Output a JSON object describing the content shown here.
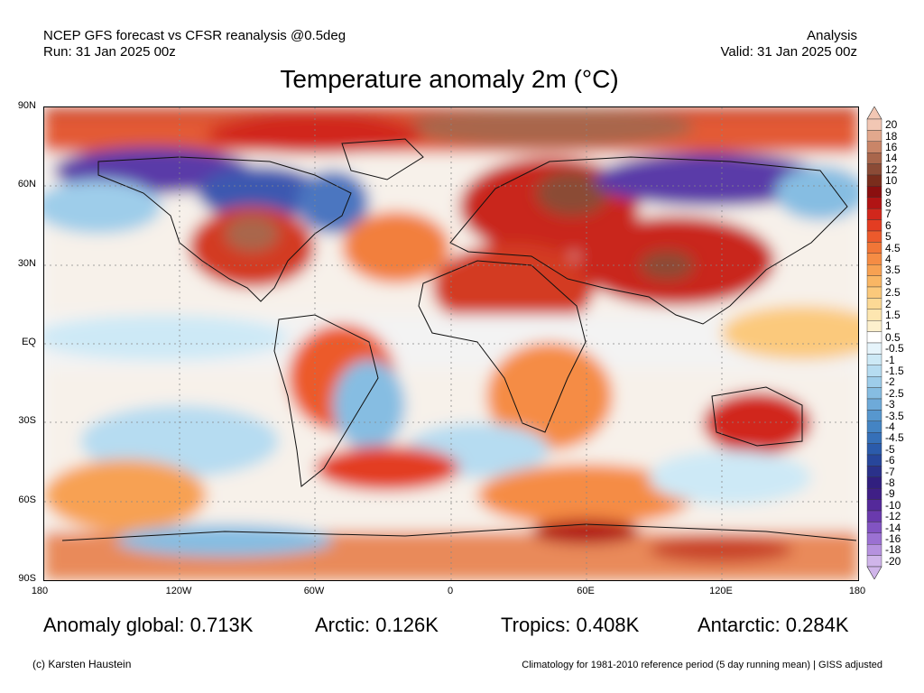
{
  "header": {
    "line1": "NCEP GFS forecast vs CFSR reanalysis @0.5deg",
    "line2": "Run: 31 Jan 2025 00z",
    "right1": "Analysis",
    "right2": "Valid: 31 Jan 2025 00z"
  },
  "title": "Temperature anomaly 2m (°C)",
  "lat_labels": [
    "90N",
    "60N",
    "30N",
    "EQ",
    "30S",
    "60S",
    "90S"
  ],
  "lon_labels": [
    "180",
    "120W",
    "60W",
    "0",
    "60E",
    "120E",
    "180"
  ],
  "colorbar": {
    "labels": [
      "20",
      "18",
      "16",
      "14",
      "12",
      "10",
      "9",
      "8",
      "7",
      "6",
      "5",
      "4.5",
      "4",
      "3.5",
      "3",
      "2.5",
      "2",
      "1.5",
      "1",
      "0.5",
      "-0.5",
      "-1",
      "-1.5",
      "-2",
      "-2.5",
      "-3",
      "-3.5",
      "-4",
      "-4.5",
      "-5",
      "-6",
      "-7",
      "-8",
      "-9",
      "-10",
      "-12",
      "-14",
      "-16",
      "-18",
      "-20"
    ],
    "colors": [
      "#f2c7b4",
      "#e2a88d",
      "#c98568",
      "#a9664c",
      "#8b4b36",
      "#7a2d1c",
      "#8b0f0f",
      "#b11414",
      "#d1271c",
      "#e33d22",
      "#ec5a2c",
      "#f17637",
      "#f58c44",
      "#f7a152",
      "#f9b664",
      "#fbc97b",
      "#fcd995",
      "#fde6b0",
      "#fdf0cd",
      "#ffffff",
      "#e6f4fb",
      "#cde9f6",
      "#b6dcf1",
      "#9ecdea",
      "#86bde2",
      "#6eaad9",
      "#5797ce",
      "#4484c3",
      "#3670b8",
      "#2b5bab",
      "#27469b",
      "#2a318a",
      "#311f7f",
      "#3f1f86",
      "#54299a",
      "#6a3aad",
      "#8254c2",
      "#9b71d2",
      "#b692df",
      "#d0b5ea"
    ]
  },
  "stats": {
    "global": "Anomaly global: 0.713K",
    "arctic": "Arctic: 0.126K",
    "tropics": "Tropics: 0.408K",
    "antarctic": "Antarctic: 0.284K"
  },
  "footer": {
    "left": "(c) Karsten Haustein",
    "right": "Climatology for 1981-2010 reference period (5 day running mean) | GISS adjusted"
  }
}
